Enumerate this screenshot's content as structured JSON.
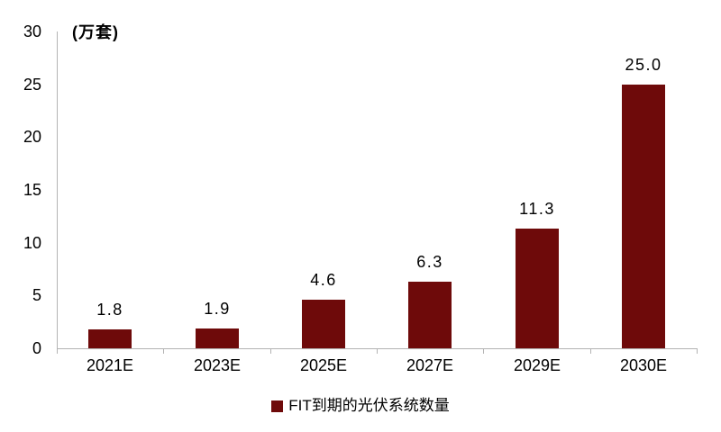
{
  "colors": {
    "bar": "#6e0a0a",
    "axis": "#b3b3b3",
    "text": "#000000",
    "background": "#ffffff"
  },
  "legend": {
    "label": "FIT到期的光伏系统数量",
    "swatch_color": "#6e0a0a",
    "position": "bottom"
  },
  "chart_data": {
    "type": "bar",
    "categories": [
      "2021E",
      "2023E",
      "2025E",
      "2027E",
      "2029E",
      "2030E"
    ],
    "values": [
      1.8,
      1.9,
      4.6,
      6.3,
      11.3,
      25.0
    ],
    "value_labels": [
      "1.8",
      "1.9",
      "4.6",
      "6.3",
      "11.3",
      "25.0"
    ],
    "series_name": "FIT到期的光伏系统数量",
    "title": "",
    "xlabel": "",
    "ylabel": "(万套)",
    "ylim": [
      0,
      30
    ],
    "yticks": [
      0,
      5,
      10,
      15,
      20,
      25,
      30
    ],
    "grid": false,
    "legend_position": "bottom"
  }
}
